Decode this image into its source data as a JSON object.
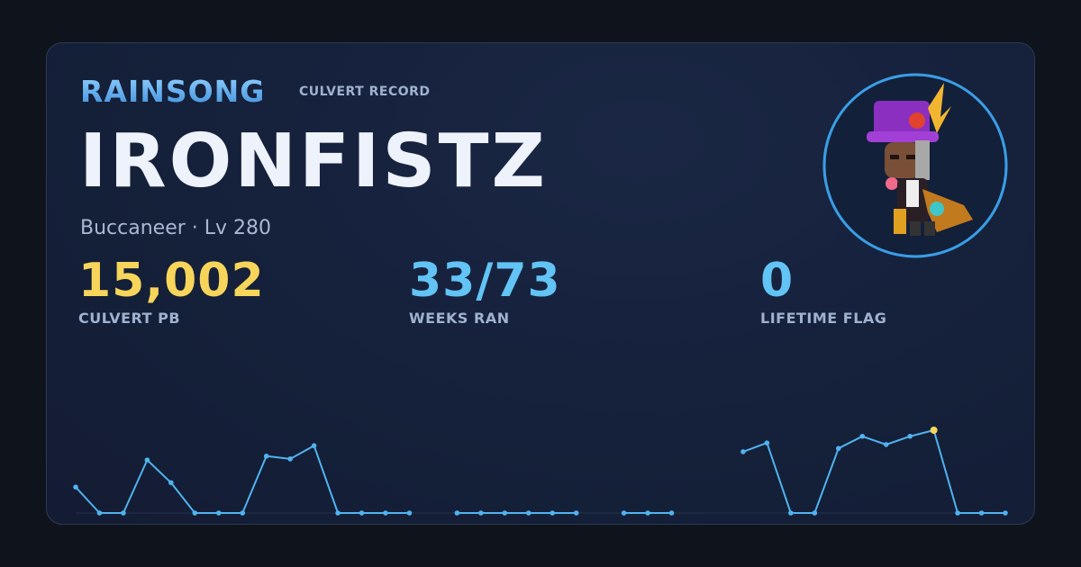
{
  "header": {
    "brand": "RAINSONG",
    "subtitle": "CULVERT RECORD"
  },
  "character": {
    "name": "IRONFISTZ",
    "class_level": "Buccaneer · Lv 280"
  },
  "stats": [
    {
      "value": "15,002",
      "label": "CULVERT PB",
      "color": "#f7d55a"
    },
    {
      "value": "33/73",
      "label": "WEEKS RAN",
      "color": "#62c3f5"
    },
    {
      "value": "0",
      "label": "LIFETIME FLAG",
      "color": "#62c3f5"
    }
  ],
  "chart_data": {
    "type": "line",
    "color": "#4fb3ee",
    "highlight_color": "#f7d55a",
    "values": [
      4700,
      0,
      0,
      9600,
      5500,
      0,
      0,
      0,
      10300,
      9800,
      12200,
      0,
      0,
      0,
      0,
      null,
      0,
      0,
      0,
      0,
      0,
      0,
      null,
      0,
      0,
      0,
      null,
      null,
      11100,
      12700,
      0,
      0,
      11700,
      13900,
      12400,
      13900,
      15002,
      0,
      0,
      0
    ]
  }
}
